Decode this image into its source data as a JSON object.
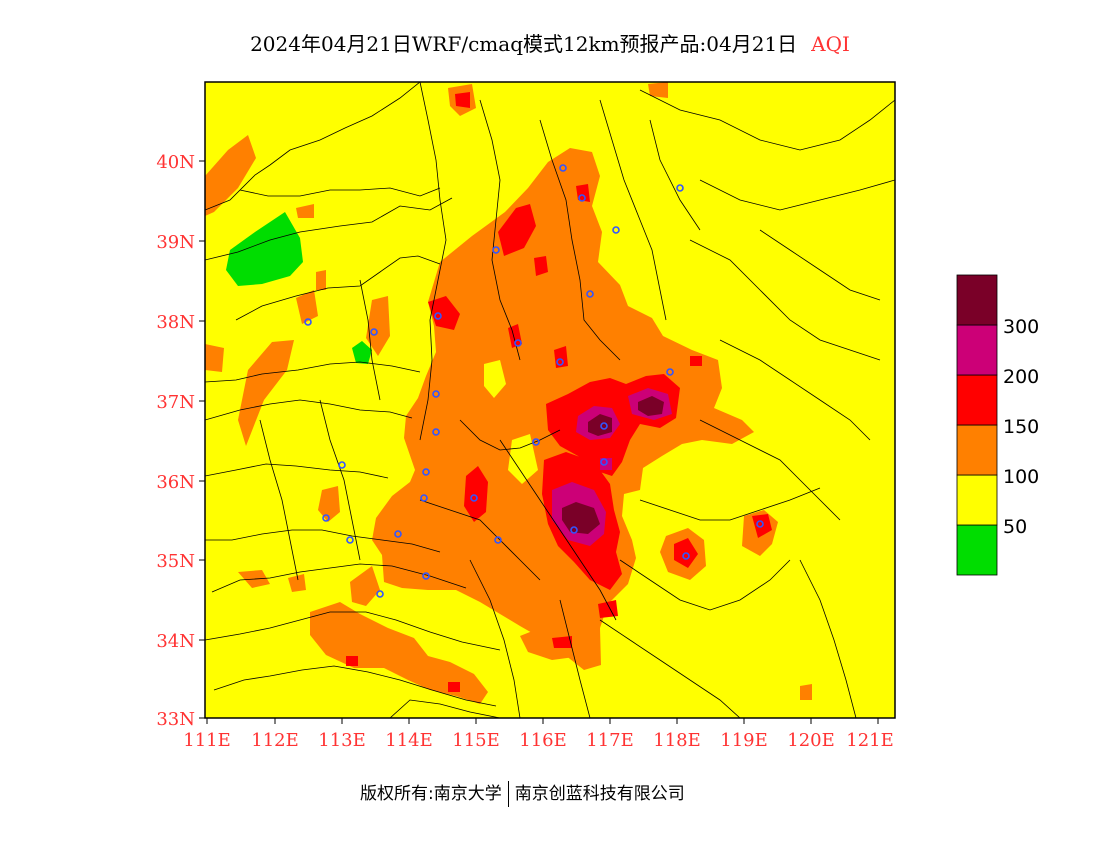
{
  "title": {
    "main": "2024年04月21日WRF/cmaq模式12km预报产品:04月21日",
    "product": "AQI"
  },
  "axes": {
    "lat_labels": [
      "40N",
      "39N",
      "38N",
      "37N",
      "36N",
      "35N",
      "34N",
      "33N"
    ],
    "lon_labels": [
      "111E",
      "112E",
      "113E",
      "114E",
      "115E",
      "116E",
      "117E",
      "118E",
      "119E",
      "120E",
      "121E"
    ],
    "label_color": "#ff3333"
  },
  "legend": {
    "bins": [
      {
        "color": "#00dd00"
      },
      {
        "color": "#ffff00"
      },
      {
        "color": "#ff8000"
      },
      {
        "color": "#ff0000"
      },
      {
        "color": "#cc0077"
      },
      {
        "color": "#7a0028"
      }
    ],
    "labels": [
      "50",
      "100",
      "150",
      "200",
      "300"
    ]
  },
  "colors": {
    "good": "#00dd00",
    "moderate": "#ffff00",
    "light": "#ff8000",
    "medium": "#ff0000",
    "heavy": "#cc0077",
    "severe": "#7a0028",
    "city_marker": "#3355ff"
  },
  "footer": {
    "copyright": "版权所有:南京大学",
    "partner": "南京创蓝科技有限公司"
  }
}
